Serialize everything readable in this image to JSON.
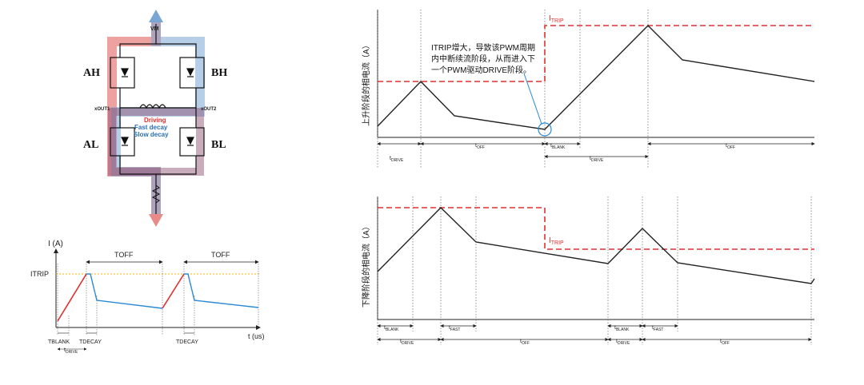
{
  "hbridge": {
    "vm_label": "VM",
    "ah": "AH",
    "bh": "BH",
    "al": "AL",
    "bl": "BL",
    "xout1": "xOUT1",
    "xout2": "xOUT2",
    "legend": [
      {
        "text": "Driving",
        "color": "#e03030"
      },
      {
        "text": "Fast decay",
        "color": "#2a6fb5"
      },
      {
        "text": "Slow decay",
        "color": "#2a6fb5"
      }
    ],
    "colors": {
      "driving": "#e88a8a",
      "fast": "#7aa6d4",
      "slow": "#8a4a6a",
      "bridge": "#111111"
    }
  },
  "small_chart": {
    "y_label": "I (A)",
    "x_label": "t (us)",
    "itrip_label": "ITRIP",
    "toff_labels": [
      "TOFF",
      "TOFF"
    ],
    "tblank_label": "TBLANK",
    "tdecay_labels": [
      "TDECAY",
      "TDECAY"
    ],
    "tdrive_label": "t",
    "tdrive_sub": "DRIVE",
    "colors": {
      "drive": "#e03030",
      "decay": "#2a8ad4",
      "itrip": "#f0b400"
    }
  },
  "top_chart": {
    "y_label": "上升阶段的相电流（A）",
    "itrip_label": "I",
    "itrip_sub": "TRIP",
    "annotation_lines": [
      "ITRIP增大，导致该PWM周期",
      "内中断续流阶段，从而进入下",
      "一个PWM驱动DRIVE阶段。"
    ],
    "timing_row1": [
      {
        "t": "t",
        "sub": "DRIVE"
      },
      {
        "t": "t",
        "sub": "OFF"
      },
      {
        "t": "t",
        "sub": "BLANK"
      },
      {
        "t": "t",
        "sub": "OFF"
      }
    ],
    "timing_row2": [
      {
        "t": "t",
        "sub": "DRIVE"
      }
    ],
    "colors": {
      "itrip": "#e03030",
      "current": "#222222",
      "circle": "#2a8ad4"
    }
  },
  "bottom_chart": {
    "y_label": "下降阶段的相电流（A）",
    "itrip_label": "I",
    "itrip_sub": "TRIP",
    "timing_row1": [
      {
        "t": "t",
        "sub": "BLANK"
      },
      {
        "t": "t",
        "sub": "FAST"
      },
      {
        "t": "t",
        "sub": "BLANK"
      },
      {
        "t": "t",
        "sub": "FAST"
      }
    ],
    "timing_row2": [
      {
        "t": "t",
        "sub": "DRIVE"
      },
      {
        "t": "t",
        "sub": "OFF"
      },
      {
        "t": "t",
        "sub": "DRIVE"
      },
      {
        "t": "t",
        "sub": "OFF"
      }
    ],
    "colors": {
      "itrip": "#e03030",
      "current": "#222222"
    }
  }
}
